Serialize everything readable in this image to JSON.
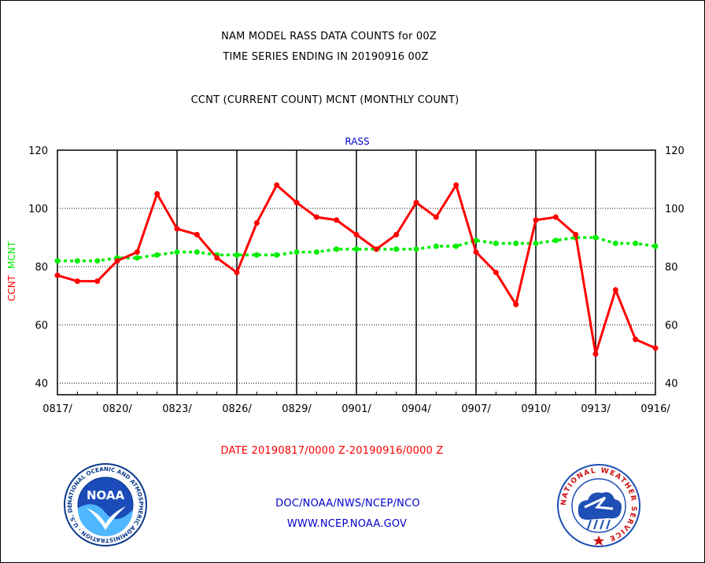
{
  "header": {
    "title_line1": "NAM MODEL RASS DATA COUNTS for 00Z",
    "title_line2": "TIME SERIES ENDING IN 20190916 00Z",
    "subtitle": "CCNT (CURRENT COUNT) MCNT (MONTHLY COUNT)"
  },
  "footer": {
    "date_range": "DATE 20190817/0000 Z-20190916/0000 Z",
    "org_path": "DOC/NOAA/NWS/NCEP/NCO",
    "website": "WWW.NCEP.NOAA.GOV"
  },
  "logos": {
    "noaa_text": "NOAA",
    "noaa_ring_text": "NATIONAL OCEANIC AND ATMOSPHERIC ADMINISTRATION · U.S. DEPARTMENT OF COMMERCE",
    "nws_ring_text": "NATIONAL WEATHER SERVICE"
  },
  "colors": {
    "ccnt": "#ff0000",
    "mcnt": "#00ee00",
    "plot_title": "#0000cc",
    "footer_date": "#ff0000",
    "footer_links": "#0000cc"
  },
  "chart_data": {
    "type": "line",
    "title": "RASS",
    "ylabel_ccnt": "CCNT",
    "ylabel_mcnt": "MCNT",
    "ylim": [
      36,
      120
    ],
    "yticks": [
      40,
      60,
      80,
      100,
      120
    ],
    "grid": true,
    "x": [
      "0817",
      "0818",
      "0819",
      "0820",
      "0821",
      "0822",
      "0823",
      "0824",
      "0825",
      "0826",
      "0827",
      "0828",
      "0829",
      "0830",
      "0831",
      "0901",
      "0902",
      "0903",
      "0904",
      "0905",
      "0906",
      "0907",
      "0908",
      "0909",
      "0910",
      "0911",
      "0912",
      "0913",
      "0914",
      "0915",
      "0916"
    ],
    "xtick_labels": [
      "0817/",
      "0820/",
      "0823/",
      "0826/",
      "0829/",
      "0901/",
      "0904/",
      "0907/",
      "0910/",
      "0913/",
      "0916/"
    ],
    "series": [
      {
        "name": "CCNT",
        "values": [
          77,
          75,
          75,
          82,
          85,
          105,
          93,
          91,
          83,
          78,
          95,
          108,
          102,
          97,
          96,
          91,
          86,
          91,
          102,
          97,
          108,
          85,
          78,
          67,
          96,
          97,
          91,
          50,
          72,
          55,
          52
        ]
      },
      {
        "name": "MCNT",
        "values": [
          82,
          82,
          82,
          83,
          83,
          84,
          85,
          85,
          84,
          84,
          84,
          84,
          85,
          85,
          86,
          86,
          86,
          86,
          86,
          87,
          87,
          89,
          88,
          88,
          88,
          89,
          90,
          90,
          88,
          88,
          87
        ]
      }
    ]
  }
}
